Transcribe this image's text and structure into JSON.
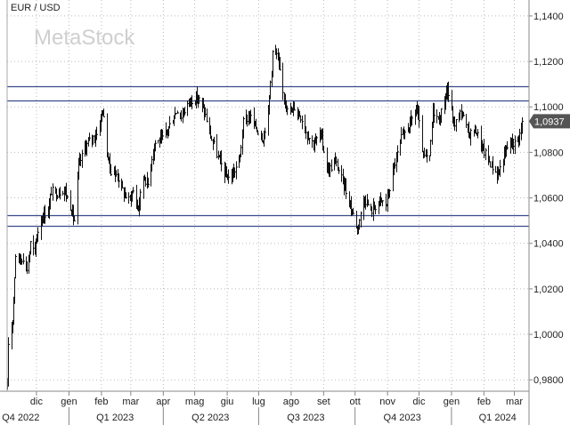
{
  "chart_data": {
    "type": "ohlc",
    "title": "EUR / USD",
    "watermark": "MetaStock",
    "ylim": [
      0.975,
      1.147
    ],
    "y_scale": "linear",
    "grid": true,
    "y_ticks": [
      "0,9800",
      "1,0000",
      "1,0200",
      "1,0400",
      "1,0600",
      "1,0800",
      "1,1000",
      "1,1200",
      "1,1400"
    ],
    "y_tick_values": [
      0.98,
      1.0,
      1.02,
      1.04,
      1.06,
      1.08,
      1.1,
      1.12,
      1.14
    ],
    "x_range": [
      "2022-11-03",
      "2024-03-15"
    ],
    "month_labels": [
      {
        "label": "dic",
        "date": "2022-12-01"
      },
      {
        "label": "gen",
        "date": "2023-01-01"
      },
      {
        "label": "feb",
        "date": "2023-02-01"
      },
      {
        "label": "mar",
        "date": "2023-03-01"
      },
      {
        "label": "apr",
        "date": "2023-04-01"
      },
      {
        "label": "mag",
        "date": "2023-05-01"
      },
      {
        "label": "giu",
        "date": "2023-06-01"
      },
      {
        "label": "lug",
        "date": "2023-07-01"
      },
      {
        "label": "ago",
        "date": "2023-08-01"
      },
      {
        "label": "set",
        "date": "2023-09-01"
      },
      {
        "label": "ott",
        "date": "2023-10-01"
      },
      {
        "label": "nov",
        "date": "2023-11-01"
      },
      {
        "label": "dic",
        "date": "2023-12-01"
      },
      {
        "label": "gen",
        "date": "2024-01-01"
      },
      {
        "label": "feb",
        "date": "2024-02-01"
      },
      {
        "label": "mar",
        "date": "2024-03-01"
      }
    ],
    "quarter_labels": [
      {
        "label": "Q4 2022",
        "date": "2022-11-16"
      },
      {
        "label": "Q1 2023",
        "date": "2023-02-14"
      },
      {
        "label": "Q2 2023",
        "date": "2023-05-16"
      },
      {
        "label": "Q3 2023",
        "date": "2023-08-15"
      },
      {
        "label": "Q4 2023",
        "date": "2023-11-15"
      },
      {
        "label": "Q1 2024",
        "date": "2024-02-14"
      }
    ],
    "quarter_dividers": [
      "2023-01-01",
      "2023-04-01",
      "2023-07-01",
      "2023-10-01",
      "2024-01-01"
    ],
    "horizontal_lines": [
      1.109,
      1.103,
      1.0525,
      1.0478
    ],
    "last_price_label": "1,0937",
    "last_price": 1.0937,
    "close_path": [
      [
        "2022-11-03",
        0.976
      ],
      [
        "2022-11-04",
        0.996
      ],
      [
        "2022-11-08",
        1.007
      ],
      [
        "2022-11-11",
        1.035
      ],
      [
        "2022-11-15",
        1.033
      ],
      [
        "2022-11-18",
        1.034
      ],
      [
        "2022-11-22",
        1.029
      ],
      [
        "2022-11-25",
        1.04
      ],
      [
        "2022-11-29",
        1.036
      ],
      [
        "2022-12-01",
        1.044
      ],
      [
        "2022-12-05",
        1.05
      ],
      [
        "2022-12-08",
        1.053
      ],
      [
        "2022-12-12",
        1.054
      ],
      [
        "2022-12-15",
        1.063
      ],
      [
        "2022-12-20",
        1.062
      ],
      [
        "2022-12-27",
        1.064
      ],
      [
        "2023-01-03",
        1.055
      ],
      [
        "2023-01-06",
        1.05
      ],
      [
        "2023-01-10",
        1.074
      ],
      [
        "2023-01-16",
        1.082
      ],
      [
        "2023-01-20",
        1.085
      ],
      [
        "2023-01-27",
        1.088
      ],
      [
        "2023-02-02",
        1.099
      ],
      [
        "2023-02-06",
        1.08
      ],
      [
        "2023-02-10",
        1.072
      ],
      [
        "2023-02-16",
        1.07
      ],
      [
        "2023-02-22",
        1.062
      ],
      [
        "2023-02-27",
        1.059
      ],
      [
        "2023-03-03",
        1.063
      ],
      [
        "2023-03-08",
        1.055
      ],
      [
        "2023-03-13",
        1.07
      ],
      [
        "2023-03-17",
        1.066
      ],
      [
        "2023-03-23",
        1.084
      ],
      [
        "2023-03-31",
        1.086
      ],
      [
        "2023-04-05",
        1.09
      ],
      [
        "2023-04-14",
        1.099
      ],
      [
        "2023-04-18",
        1.096
      ],
      [
        "2023-04-26",
        1.103
      ],
      [
        "2023-05-04",
        1.104
      ],
      [
        "2023-05-10",
        1.098
      ],
      [
        "2023-05-16",
        1.087
      ],
      [
        "2023-05-23",
        1.078
      ],
      [
        "2023-05-31",
        1.069
      ],
      [
        "2023-06-06",
        1.07
      ],
      [
        "2023-06-13",
        1.078
      ],
      [
        "2023-06-16",
        1.093
      ],
      [
        "2023-06-22",
        1.096
      ],
      [
        "2023-06-28",
        1.091
      ],
      [
        "2023-07-05",
        1.086
      ],
      [
        "2023-07-10",
        1.098
      ],
      [
        "2023-07-14",
        1.124
      ],
      [
        "2023-07-18",
        1.123
      ],
      [
        "2023-07-24",
        1.106
      ],
      [
        "2023-07-31",
        1.097
      ],
      [
        "2023-08-04",
        1.1
      ],
      [
        "2023-08-10",
        1.096
      ],
      [
        "2023-08-16",
        1.088
      ],
      [
        "2023-08-22",
        1.084
      ],
      [
        "2023-08-29",
        1.088
      ],
      [
        "2023-09-05",
        1.072
      ],
      [
        "2023-09-12",
        1.076
      ],
      [
        "2023-09-20",
        1.066
      ],
      [
        "2023-09-26",
        1.057
      ],
      [
        "2023-10-03",
        1.047
      ],
      [
        "2023-10-10",
        1.06
      ],
      [
        "2023-10-16",
        1.054
      ],
      [
        "2023-10-24",
        1.059
      ],
      [
        "2023-10-31",
        1.057
      ],
      [
        "2023-11-06",
        1.072
      ],
      [
        "2023-11-14",
        1.086
      ],
      [
        "2023-11-21",
        1.092
      ],
      [
        "2023-11-29",
        1.099
      ],
      [
        "2023-12-05",
        1.078
      ],
      [
        "2023-12-11",
        1.077
      ],
      [
        "2023-12-14",
        1.099
      ],
      [
        "2023-12-20",
        1.094
      ],
      [
        "2023-12-28",
        1.108
      ],
      [
        "2024-01-03",
        1.092
      ],
      [
        "2024-01-10",
        1.098
      ],
      [
        "2024-01-17",
        1.088
      ],
      [
        "2024-01-24",
        1.09
      ],
      [
        "2024-01-31",
        1.081
      ],
      [
        "2024-02-06",
        1.076
      ],
      [
        "2024-02-14",
        1.07
      ],
      [
        "2024-02-20",
        1.079
      ],
      [
        "2024-02-26",
        1.085
      ],
      [
        "2024-03-01",
        1.084
      ],
      [
        "2024-03-06",
        1.088
      ],
      [
        "2024-03-08",
        1.0937
      ]
    ]
  }
}
